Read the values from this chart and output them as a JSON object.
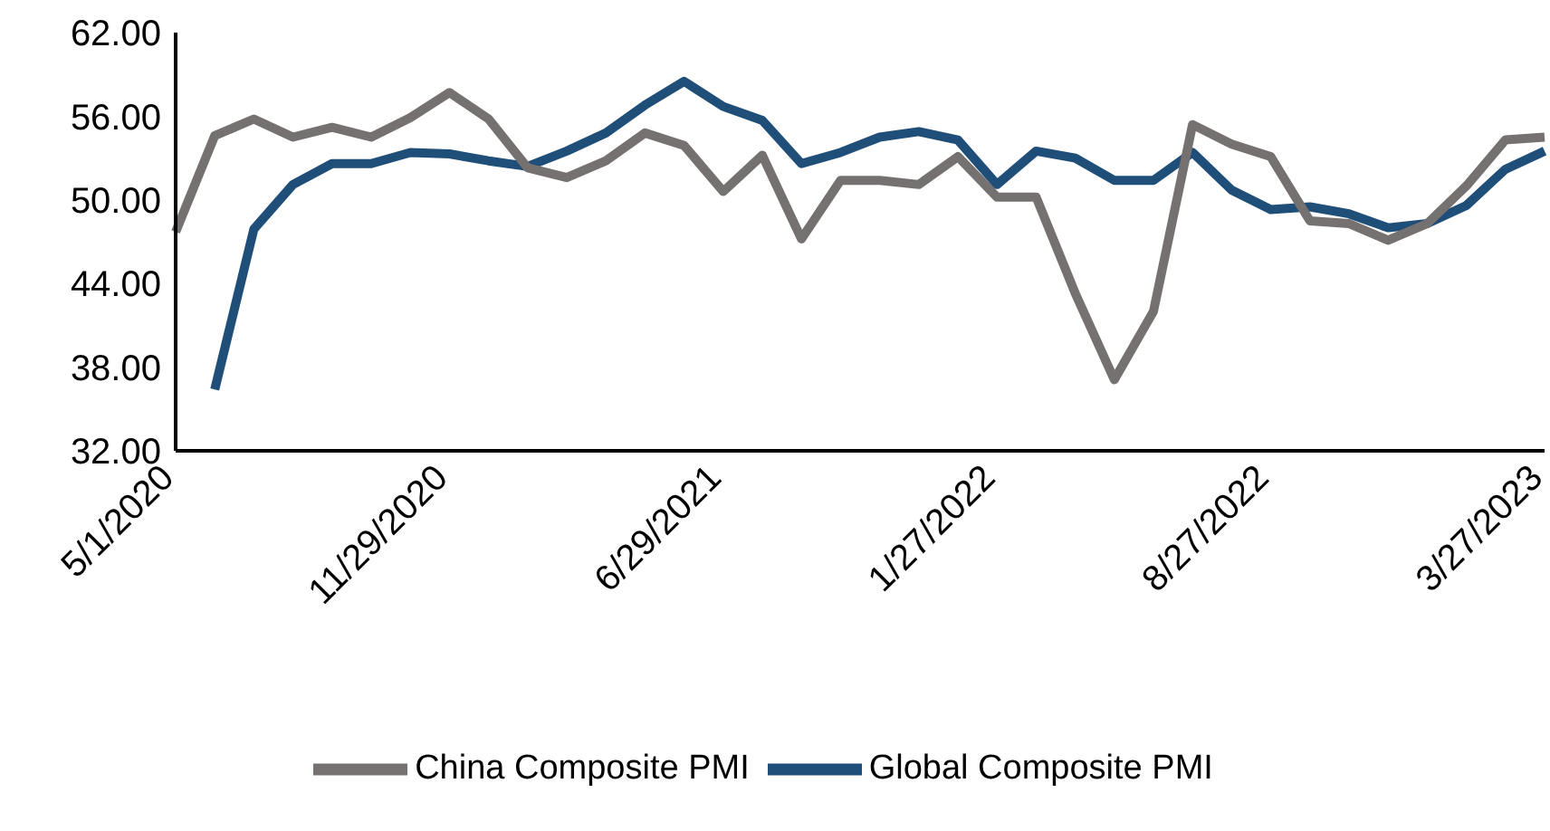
{
  "chart_data": {
    "type": "line",
    "categories": [
      "5/1/2020",
      null,
      null,
      null,
      null,
      null,
      null,
      "11/29/2020",
      null,
      null,
      null,
      null,
      null,
      null,
      "6/29/2021",
      null,
      null,
      null,
      null,
      null,
      null,
      "1/27/2022",
      null,
      null,
      null,
      null,
      null,
      null,
      "8/27/2022",
      null,
      null,
      null,
      null,
      null,
      null,
      "3/27/2023"
    ],
    "series": [
      {
        "name": "Global Composite PMI",
        "color": "#1f4e79",
        "values": [
          null,
          36.4,
          47.9,
          51.1,
          52.6,
          52.6,
          53.4,
          53.3,
          52.8,
          52.4,
          53.5,
          54.8,
          56.8,
          58.5,
          56.7,
          55.7,
          52.6,
          53.4,
          54.5,
          54.9,
          54.3,
          51.1,
          53.5,
          53.0,
          51.4,
          51.4,
          53.4,
          50.7,
          49.3,
          49.5,
          49.0,
          48.0,
          48.3,
          49.6,
          52.2,
          53.5
        ]
      },
      {
        "name": "China Composite PMI",
        "color": "#767171",
        "values": [
          47.7,
          54.6,
          55.8,
          54.5,
          55.2,
          54.5,
          55.9,
          57.7,
          55.8,
          52.3,
          51.6,
          52.8,
          54.8,
          53.9,
          50.6,
          53.2,
          47.2,
          51.4,
          51.4,
          51.1,
          53.1,
          50.2,
          50.2,
          43.3,
          37.1,
          42.0,
          55.4,
          54.0,
          53.1,
          48.5,
          48.3,
          47.1,
          48.3,
          51.0,
          54.3,
          54.5
        ]
      }
    ],
    "ylim": [
      32,
      62
    ],
    "yticks": [
      {
        "value": 32,
        "label": "32.00"
      },
      {
        "value": 38,
        "label": "38.00"
      },
      {
        "value": 44,
        "label": "44.00"
      },
      {
        "value": 50,
        "label": "50.00"
      },
      {
        "value": 56,
        "label": "56.00"
      },
      {
        "value": 62,
        "label": "62.00"
      }
    ],
    "grid": false,
    "legend": "bottom",
    "marker": "none",
    "line_style": "solid"
  }
}
